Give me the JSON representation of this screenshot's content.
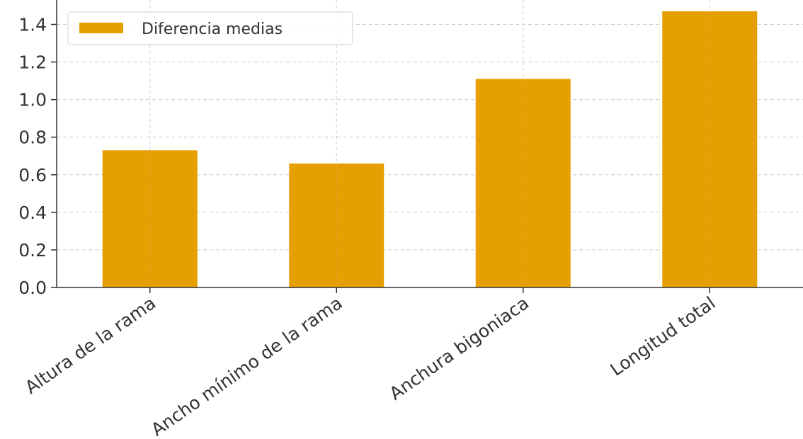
{
  "chart_data": {
    "type": "bar",
    "title": "",
    "xlabel": "",
    "ylabel": "",
    "categories": [
      "Altura de la rama",
      "Ancho mínimo de la rama",
      "Anchura bigoniaca",
      "Longitud total"
    ],
    "series": [
      {
        "name": "Diferencia medias",
        "values": [
          0.73,
          0.66,
          1.11,
          1.47
        ],
        "color": "#E69F00"
      }
    ],
    "ylim": [
      0,
      1.53
    ],
    "yticks": [
      "0.0",
      "0.2",
      "0.4",
      "0.6",
      "0.8",
      "1.0",
      "1.2",
      "1.4"
    ],
    "grid": true,
    "legend_position": "top-left"
  }
}
